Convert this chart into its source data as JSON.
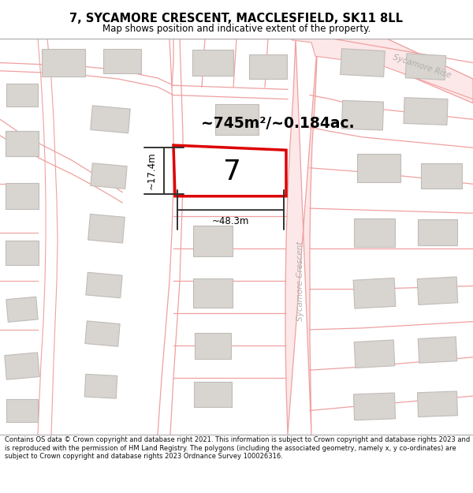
{
  "title_line1": "7, SYCAMORE CRESCENT, MACCLESFIELD, SK11 8LL",
  "title_line2": "Map shows position and indicative extent of the property.",
  "footer_text": "Contains OS data © Crown copyright and database right 2021. This information is subject to Crown copyright and database rights 2023 and is reproduced with the permission of HM Land Registry. The polygons (including the associated geometry, namely x, y co-ordinates) are subject to Crown copyright and database rights 2023 Ordnance Survey 100026316.",
  "property_number": "7",
  "area_label": "~745m²/~0.184ac.",
  "width_label": "~48.3m",
  "height_label": "~17.4m",
  "road_line_color": "#f0a0a0",
  "road_fill_color": "#fce8e8",
  "building_fill": "#d8d4d0",
  "building_edge": "#c0bcb8",
  "plot_outline_color": "#dd0000",
  "plot_fill_color": "#ffffff",
  "dimension_line_color": "#333333",
  "text_color": "#000000",
  "street_label_1": "Sycamore Crescent",
  "street_label_2": "Sycamore Rise"
}
